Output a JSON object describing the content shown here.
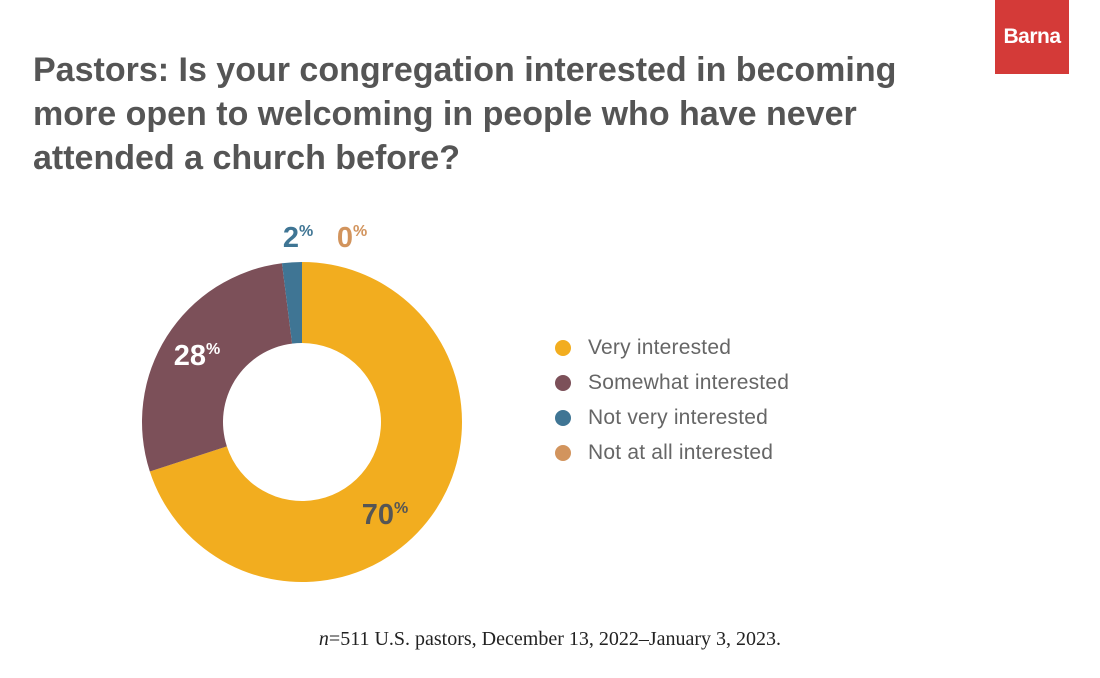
{
  "brand": {
    "name": "Barna",
    "color": "#d43a38"
  },
  "chart_data": {
    "type": "pie",
    "variant": "donut",
    "title": "Pastors: Is your congregation interested in becoming more open to welcoming in people who have never attended a church before?",
    "unit": "%",
    "categories": [
      "Very interested",
      "Somewhat interested",
      "Not very interested",
      "Not at all interested"
    ],
    "values": [
      70,
      28,
      2,
      0
    ],
    "colors": [
      "#f2ad1f",
      "#7c5059",
      "#3f7594",
      "#d2945d"
    ],
    "data_labels": [
      "70",
      "28",
      "2",
      "0"
    ],
    "legend_position": "right"
  },
  "footnote": {
    "n_symbol": "n",
    "text": "=511 U.S. pastors, December 13, 2022–January 3, 2023."
  }
}
